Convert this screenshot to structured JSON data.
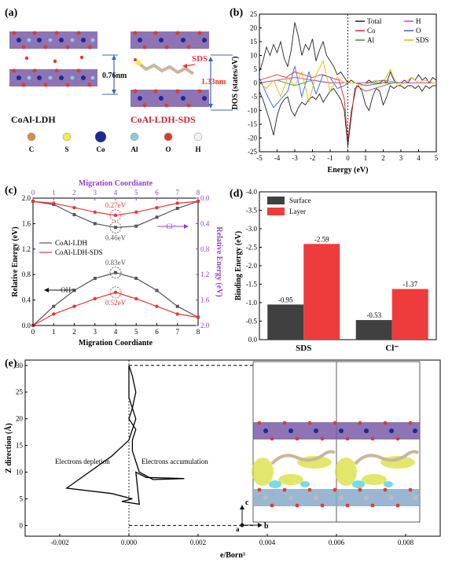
{
  "panel_labels": {
    "a": "(a)",
    "b": "(b)",
    "c": "(c)",
    "d": "(d)",
    "e": "(e)"
  },
  "panel_a": {
    "spacing_ldh": "0.76nm",
    "spacing_sds": "1.33nm",
    "sds_arrow": "SDS",
    "name_ldh": "CoAl-LDH",
    "name_sds": "CoAl-LDH-SDS",
    "legend": [
      {
        "label": "C",
        "color": "#d98a55"
      },
      {
        "label": "S",
        "color": "#f2ee4a"
      },
      {
        "label": "Co",
        "color": "#1d2a8f"
      },
      {
        "label": "Al",
        "color": "#8ec7e6"
      },
      {
        "label": "O",
        "color": "#e23a2a"
      },
      {
        "label": "H",
        "color": "#f2f2f2"
      }
    ]
  },
  "chart_data": [
    {
      "id": "b",
      "type": "line",
      "xlabel": "Energy (eV)",
      "ylabel": "DOS (states/eV)",
      "xlim": [
        -5,
        5
      ],
      "ylim": [
        -25,
        25
      ],
      "xticks": [
        -5,
        -4,
        -3,
        -2,
        -1,
        0,
        1,
        2,
        3,
        4,
        5
      ],
      "yticks": [
        25,
        20,
        15,
        10,
        5,
        0,
        -5,
        -10,
        -15,
        -20,
        -25
      ],
      "legend": [
        {
          "name": "Total",
          "color": "#222222"
        },
        {
          "name": "H",
          "color": "#cc44cc"
        },
        {
          "name": "Co",
          "color": "#d62a2a"
        },
        {
          "name": "O",
          "color": "#3a60d6"
        },
        {
          "name": "Al",
          "color": "#2a9a4a"
        },
        {
          "name": "SDS",
          "color": "#d8b800"
        }
      ],
      "series": [
        {
          "name": "Total",
          "color": "#222222",
          "x": [
            -5,
            -4.8,
            -4.6,
            -4.4,
            -4.2,
            -4.0,
            -3.8,
            -3.6,
            -3.4,
            -3.2,
            -3.0,
            -2.8,
            -2.6,
            -2.4,
            -2.2,
            -2.0,
            -1.8,
            -1.6,
            -1.4,
            -1.2,
            -1.0,
            -0.8,
            -0.6,
            -0.4,
            -0.2,
            0,
            0.2,
            0.4,
            0.6,
            0.8,
            1.0,
            1.2,
            1.4,
            1.6,
            1.8,
            2.0,
            2.2,
            2.4,
            2.6,
            2.8,
            3.0,
            3.2,
            3.4,
            3.6,
            3.8,
            4.0,
            4.2,
            4.4,
            4.6,
            4.8,
            5.0
          ],
          "y": [
            4,
            8,
            13,
            10,
            14,
            11,
            15,
            9,
            6,
            12,
            22,
            17,
            10,
            14,
            12,
            16,
            8,
            12,
            15,
            10,
            8,
            6,
            3,
            4,
            2,
            0,
            1,
            0,
            0,
            0,
            0,
            1,
            0,
            0,
            0,
            1,
            0,
            4,
            1,
            0,
            0,
            1,
            0,
            2,
            1,
            3,
            1,
            2,
            0,
            2,
            1
          ]
        },
        {
          "name": "Total-down",
          "color": "#222222",
          "x": [
            -5,
            -4.8,
            -4.6,
            -4.4,
            -4.2,
            -4.0,
            -3.8,
            -3.6,
            -3.4,
            -3.2,
            -3.0,
            -2.8,
            -2.6,
            -2.4,
            -2.2,
            -2.0,
            -1.8,
            -1.6,
            -1.4,
            -1.2,
            -1.0,
            -0.8,
            -0.6,
            -0.4,
            -0.2,
            0,
            0.2,
            0.4,
            0.6,
            0.8,
            1.0,
            1.2,
            1.4,
            1.6,
            1.8,
            2.0,
            2.2,
            2.4,
            2.6,
            2.8,
            3.0,
            3.2,
            3.4,
            3.6,
            3.8,
            4.0,
            4.2,
            4.4,
            4.6,
            4.8,
            5.0
          ],
          "y": [
            -3,
            -6,
            -10,
            -14,
            -19,
            -12,
            -8,
            -6,
            -5,
            -10,
            -12,
            -9,
            -7,
            -8,
            -6,
            -5,
            -6,
            -4,
            -7,
            -5,
            -3,
            -2,
            -4,
            -6,
            -10,
            -23,
            -12,
            -2,
            -1,
            -3,
            -8,
            -10,
            -5,
            -2,
            -3,
            -8,
            -5,
            -1,
            -2,
            -1,
            -1,
            -2,
            -1,
            -1,
            -2,
            -1,
            -3,
            -1,
            -2,
            -1,
            -1
          ]
        },
        {
          "name": "Co",
          "color": "#d62a2a",
          "x": [
            -5,
            -4.5,
            -4,
            -3.5,
            -3,
            -2.5,
            -2,
            -1.5,
            -1,
            -0.5,
            -0.2,
            0,
            0.2,
            0.5,
            1,
            1.5,
            2,
            2.5,
            3,
            4,
            5
          ],
          "y": [
            1,
            2,
            3,
            2,
            4,
            3,
            2,
            3,
            2,
            1,
            -6,
            -21,
            -10,
            -1,
            -3,
            -2,
            -1,
            0,
            0,
            0,
            0
          ]
        },
        {
          "name": "O",
          "color": "#3a60d6",
          "x": [
            -5,
            -4.6,
            -4.2,
            -3.8,
            -3.4,
            -3,
            -2.6,
            -2.2,
            -1.8,
            -1.4,
            -1,
            -0.6,
            -0.2,
            0,
            0.5,
            1,
            2,
            3,
            4,
            5
          ],
          "y": [
            2,
            -4,
            -9,
            -6,
            -3,
            6,
            -5,
            4,
            -4,
            3,
            2,
            -2,
            -1,
            0,
            0,
            -1,
            0,
            0,
            0,
            0
          ]
        },
        {
          "name": "Al",
          "color": "#2a9a4a",
          "x": [
            -5,
            -4,
            -3,
            -2,
            -1,
            0,
            1,
            2,
            3,
            4,
            5
          ],
          "y": [
            0,
            1,
            -1,
            1,
            0,
            0,
            0,
            0,
            0,
            0,
            0
          ]
        },
        {
          "name": "H",
          "color": "#cc44cc",
          "x": [
            -5,
            -4,
            -3,
            -2,
            -1,
            0,
            1,
            2,
            3,
            4,
            5
          ],
          "y": [
            0,
            1,
            2,
            1,
            0,
            0,
            0,
            1,
            0,
            0,
            0
          ]
        },
        {
          "name": "SDS",
          "color": "#d8b800",
          "x": [
            -5,
            -4.6,
            -4.2,
            -3.8,
            -3.4,
            -3,
            -2.6,
            -2.2,
            -1.8,
            -1.4,
            -1,
            -0.6,
            -0.2,
            0,
            0.4,
            0.8,
            1.2,
            1.6,
            2,
            2.4,
            2.8,
            3.2,
            3.6,
            4,
            4.4,
            4.8,
            5
          ],
          "y": [
            0,
            -2,
            1,
            -5,
            2,
            -1,
            4,
            -7,
            3,
            8,
            -3,
            2,
            0,
            0,
            0,
            -1,
            0,
            1,
            0,
            5,
            -1,
            0,
            2,
            0,
            1,
            0,
            0
          ]
        }
      ]
    },
    {
      "id": "c",
      "type": "line",
      "xlabel": "Migration Coordiante",
      "x2label": "Migration Coordiante",
      "ylabel": "Relative Energy (eV)",
      "y2label": "Relative Energy (eV)",
      "xlim": [
        0,
        8
      ],
      "ylim": [
        0,
        2.0
      ],
      "y2lim": [
        2.0,
        0
      ],
      "xticks": [
        0,
        1,
        2,
        3,
        4,
        5,
        6,
        7,
        8
      ],
      "yticks": [
        0,
        0.4,
        0.8,
        1.2,
        1.6,
        2.0
      ],
      "y2ticks": [
        0.0,
        0.4,
        0.8,
        1.2,
        1.6,
        2.0
      ],
      "legend": [
        {
          "name": "CoAl-LDH",
          "color": "#555555"
        },
        {
          "name": "CoAl-LDH-SDS",
          "color": "#e03a3a"
        }
      ],
      "series": [
        {
          "name": "CoAl-LDH OH",
          "color": "#555555",
          "x": [
            0,
            1,
            2,
            3,
            4,
            5,
            6,
            7,
            8
          ],
          "y": [
            0,
            0.3,
            0.55,
            0.74,
            0.83,
            0.74,
            0.55,
            0.3,
            0.13
          ]
        },
        {
          "name": "CoAl-LDH-SDS OH",
          "color": "#e03a3a",
          "x": [
            0,
            1,
            2,
            3,
            4,
            5,
            6,
            7,
            8
          ],
          "y": [
            0,
            0.18,
            0.3,
            0.42,
            0.52,
            0.42,
            0.3,
            0.18,
            0.13
          ]
        },
        {
          "name": "CoAl-LDH Cl",
          "color": "#555555",
          "x": [
            0,
            1,
            2,
            3,
            4,
            5,
            6,
            7,
            8
          ],
          "y2": [
            0.05,
            0.1,
            0.26,
            0.4,
            0.46,
            0.44,
            0.3,
            0.16,
            0.05
          ]
        },
        {
          "name": "CoAl-LDH-SDS Cl",
          "color": "#e03a3a",
          "x": [
            0,
            1,
            2,
            3,
            4,
            5,
            6,
            7,
            8
          ],
          "y2": [
            0.05,
            0.08,
            0.15,
            0.22,
            0.27,
            0.22,
            0.15,
            0.08,
            0.05
          ]
        }
      ],
      "annotations": [
        {
          "text": "0.27eV",
          "color": "#e03a3a"
        },
        {
          "text": "0.46eV",
          "color": "#555555"
        },
        {
          "text": "0.83eV",
          "color": "#555555"
        },
        {
          "text": "0.52eV",
          "color": "#e03a3a"
        },
        {
          "text": "Cl⁻",
          "color": "#9b3cc9"
        },
        {
          "text": "OH⁻",
          "color": "#222222"
        }
      ]
    },
    {
      "id": "d",
      "type": "bar",
      "ylabel": "Binding Energy (eV)",
      "ylim": [
        0,
        -4.0
      ],
      "yticks": [
        0,
        -0.5,
        -1.0,
        -1.5,
        -2.0,
        -2.5,
        -3.0,
        -3.5,
        -4.0
      ],
      "categories": [
        "SDS",
        "Cl⁻"
      ],
      "series": [
        {
          "name": "Surface",
          "color": "#404040",
          "values": [
            -0.95,
            -0.53
          ]
        },
        {
          "name": "Layer",
          "color": "#ee3b3b",
          "values": [
            -2.59,
            -1.37
          ]
        }
      ]
    },
    {
      "id": "e",
      "type": "line",
      "xlabel": "e/Born³",
      "ylabel": "Z direction (Å)",
      "xlim": [
        -0.003,
        0.009
      ],
      "ylim": [
        -2,
        31
      ],
      "xticks": [
        -0.002,
        0.0,
        0.002,
        0.004,
        0.006,
        0.008
      ],
      "yticks": [
        0,
        5,
        10,
        15,
        20,
        25,
        30
      ],
      "series": [
        {
          "name": "charge",
          "color": "#000000",
          "x": [
            0,
            0.0001,
            0.0002,
            0.0001,
            0.0002,
            0.0001,
            0,
            -0.0005,
            -0.0018,
            -0.0005,
            0.0001,
            -0.0002,
            0.0003,
            0.0002,
            0.0005,
            0.0016,
            0.0007,
            0.0003,
            0.0002,
            0.0001,
            0.0001,
            0.0002,
            0,
            0.0001,
            0,
            0
          ],
          "y": [
            30,
            28,
            25,
            22,
            20,
            18,
            16,
            13,
            7,
            6,
            5,
            4.5,
            4,
            10,
            9,
            8.8,
            8.6,
            10,
            12,
            14,
            16,
            18,
            20,
            22,
            24,
            30
          ]
        }
      ],
      "annotations": [
        {
          "text": "Electrons  depletion",
          "color": "#000000"
        },
        {
          "text": "Electrons  accumulation",
          "color": "#000000"
        }
      ]
    }
  ]
}
